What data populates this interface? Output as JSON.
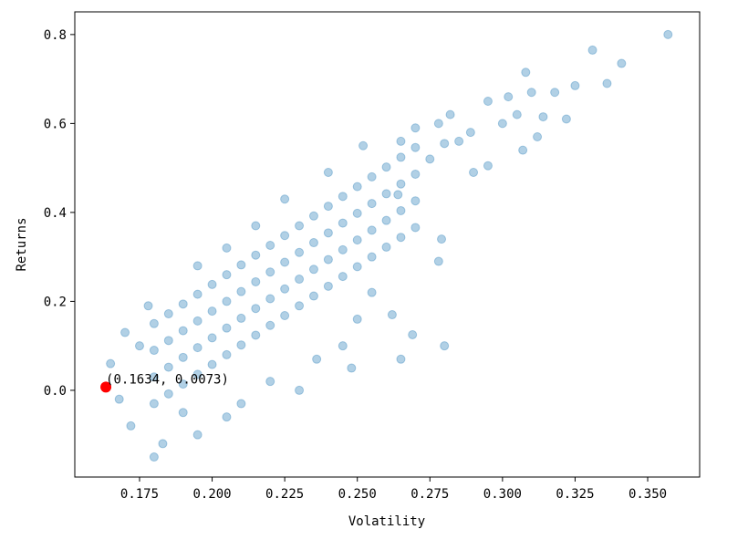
{
  "chart_data": {
    "type": "scatter",
    "x_label": "Volatility",
    "y_label": "Returns",
    "color": "#1f77b4",
    "x": [
      0.18,
      0.18,
      0.18,
      0.18,
      0.185,
      0.185,
      0.185,
      0.185,
      0.19,
      0.19,
      0.19,
      0.19,
      0.195,
      0.195,
      0.195,
      0.195,
      0.2,
      0.2,
      0.2,
      0.2,
      0.205,
      0.205,
      0.205,
      0.205,
      0.21,
      0.21,
      0.21,
      0.21,
      0.215,
      0.215,
      0.215,
      0.215,
      0.22,
      0.22,
      0.22,
      0.22,
      0.225,
      0.225,
      0.225,
      0.225,
      0.23,
      0.23,
      0.23,
      0.23,
      0.235,
      0.235,
      0.235,
      0.235,
      0.24,
      0.24,
      0.24,
      0.24,
      0.245,
      0.245,
      0.245,
      0.245,
      0.25,
      0.25,
      0.25,
      0.25,
      0.255,
      0.255,
      0.255,
      0.255,
      0.26,
      0.26,
      0.26,
      0.26,
      0.265,
      0.265,
      0.265,
      0.265,
      0.27,
      0.27,
      0.27,
      0.27,
      0.357,
      0.331,
      0.341,
      0.308,
      0.336,
      0.325,
      0.318,
      0.31,
      0.302,
      0.295,
      0.322,
      0.314,
      0.305,
      0.3,
      0.312,
      0.307,
      0.289,
      0.285,
      0.28,
      0.295,
      0.29,
      0.278,
      0.282,
      0.275,
      0.264,
      0.279,
      0.278,
      0.28,
      0.265,
      0.269,
      0.262,
      0.255,
      0.25,
      0.245,
      0.236,
      0.248,
      0.22,
      0.205,
      0.195,
      0.183,
      0.18,
      0.172,
      0.168,
      0.165,
      0.175,
      0.17,
      0.178,
      0.195,
      0.205,
      0.215,
      0.225,
      0.24,
      0.252,
      0.265,
      0.27,
      0.21,
      0.23,
      0.19
    ],
    "values": [
      -0.03,
      0.03,
      0.09,
      0.15,
      -0.008,
      0.052,
      0.112,
      0.172,
      0.014,
      0.074,
      0.134,
      0.194,
      0.036,
      0.096,
      0.156,
      0.216,
      0.058,
      0.118,
      0.178,
      0.238,
      0.08,
      0.14,
      0.2,
      0.26,
      0.102,
      0.162,
      0.222,
      0.282,
      0.124,
      0.184,
      0.244,
      0.304,
      0.146,
      0.206,
      0.266,
      0.326,
      0.168,
      0.228,
      0.288,
      0.348,
      0.19,
      0.25,
      0.31,
      0.37,
      0.212,
      0.272,
      0.332,
      0.392,
      0.234,
      0.294,
      0.354,
      0.414,
      0.256,
      0.316,
      0.376,
      0.436,
      0.278,
      0.338,
      0.398,
      0.458,
      0.3,
      0.36,
      0.42,
      0.48,
      0.322,
      0.382,
      0.442,
      0.502,
      0.344,
      0.404,
      0.464,
      0.524,
      0.366,
      0.426,
      0.486,
      0.546,
      0.8,
      0.765,
      0.735,
      0.715,
      0.69,
      0.685,
      0.67,
      0.67,
      0.66,
      0.65,
      0.61,
      0.615,
      0.62,
      0.6,
      0.57,
      0.54,
      0.58,
      0.56,
      0.555,
      0.505,
      0.49,
      0.6,
      0.62,
      0.52,
      0.44,
      0.34,
      0.29,
      0.1,
      0.07,
      0.125,
      0.17,
      0.22,
      0.16,
      0.1,
      0.07,
      0.05,
      0.02,
      -0.06,
      -0.1,
      -0.12,
      -0.15,
      -0.08,
      -0.02,
      0.06,
      0.1,
      0.13,
      0.19,
      0.28,
      0.32,
      0.37,
      0.43,
      0.49,
      0.55,
      0.56,
      0.59,
      -0.03,
      0.0,
      -0.05
    ],
    "highlight": {
      "x": 0.1634,
      "y": 0.0073,
      "label": "(0.1634, 0.0073)",
      "color": "#ff0000"
    },
    "xlim": [
      0.1527,
      0.3679
    ],
    "ylim": [
      -0.195,
      0.851
    ],
    "xticks": [
      0.175,
      {
        "value": 0.2,
        "label": "0.200"
      },
      0.225,
      {
        "value": 0.25,
        "label": "0.250"
      },
      0.275,
      {
        "value": 0.3,
        "label": "0.300"
      },
      0.325,
      {
        "value": 0.35,
        "label": "0.350"
      }
    ],
    "yticks": [
      {
        "value": 0,
        "label": "0.0"
      },
      0.2,
      0.4,
      0.6,
      0.8
    ]
  }
}
